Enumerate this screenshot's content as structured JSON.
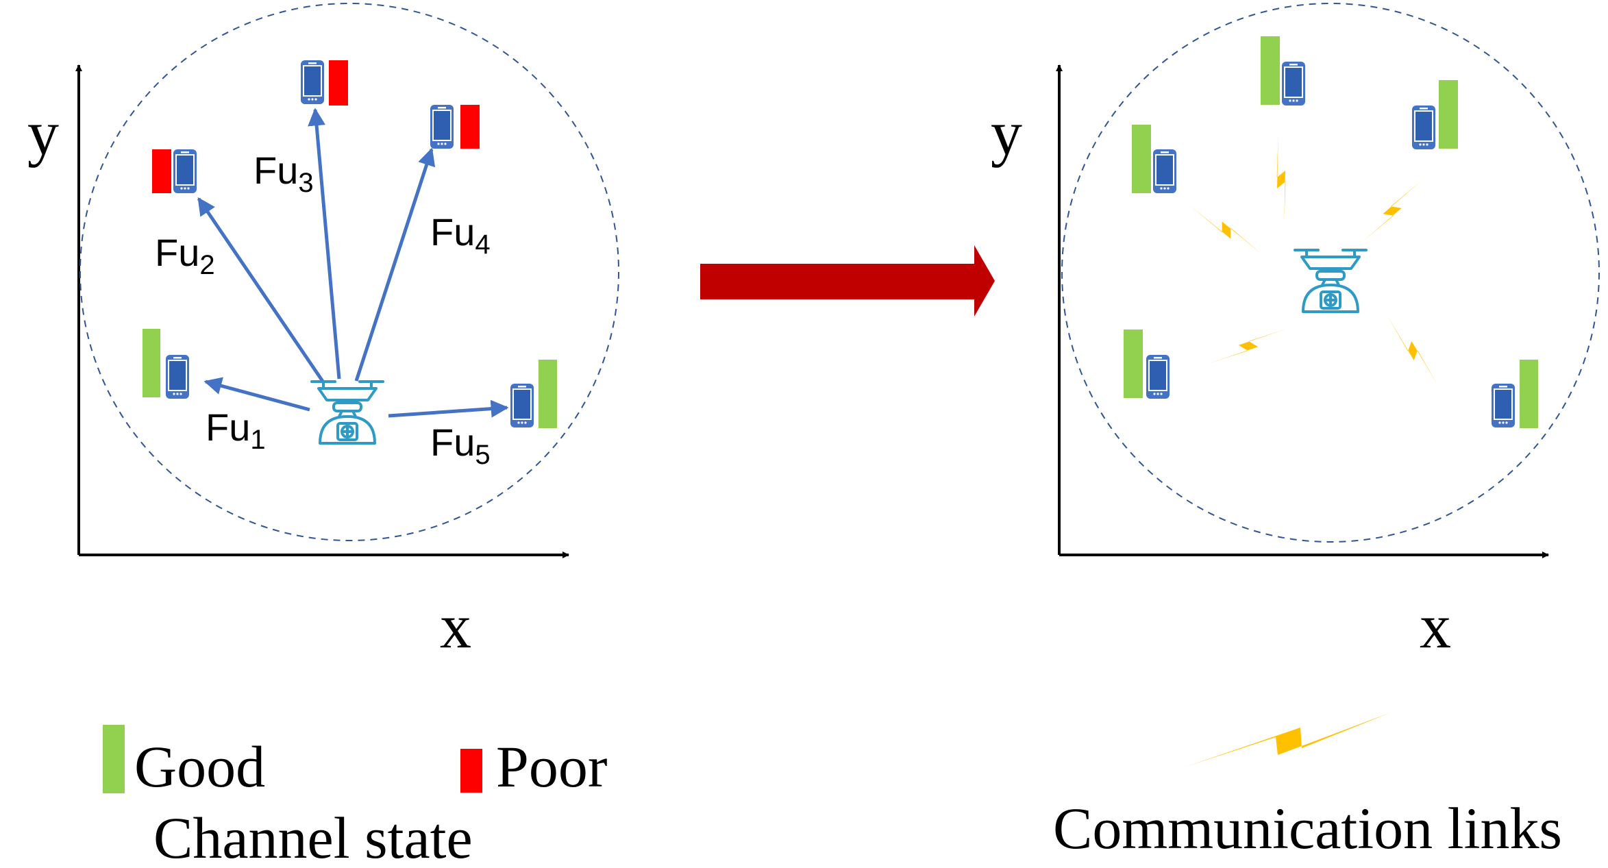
{
  "colors": {
    "good": "#92d050",
    "poor": "#ff0000",
    "phone": "#4472c4",
    "arrow": "#4472c4",
    "drone": "#2e9bc7",
    "circle": "#2f5597",
    "axis": "#000000",
    "transition_arrow": "#c00000",
    "link": "#ffc000"
  },
  "left_panel": {
    "axis_y_label": "y",
    "axis_x_label": "x",
    "users": [
      {
        "label": "Fu",
        "sub": "1",
        "state": "good"
      },
      {
        "label": "Fu",
        "sub": "2",
        "state": "poor"
      },
      {
        "label": "Fu",
        "sub": "3",
        "state": "poor"
      },
      {
        "label": "Fu",
        "sub": "4",
        "state": "poor"
      },
      {
        "label": "Fu",
        "sub": "5",
        "state": "good"
      }
    ]
  },
  "right_panel": {
    "axis_y_label": "y",
    "axis_x_label": "x",
    "user_states": [
      "good",
      "good",
      "good",
      "good",
      "good",
      "good"
    ]
  },
  "legend": {
    "good_label": "Good",
    "poor_label": "Poor",
    "channel_caption": "Channel state",
    "links_caption": "Communication links"
  }
}
